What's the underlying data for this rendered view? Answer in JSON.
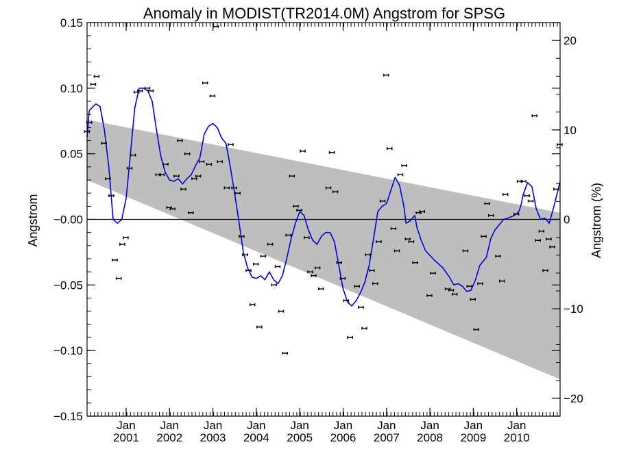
{
  "chart_data": {
    "type": "scatter",
    "title": "Anomaly in MODIST(TR2014.0M) Angstrom for SPSG",
    "ylabel": "Angstrom",
    "ylabel_right": "Angstrom (%)",
    "xlim": [
      2000.0,
      2010.9
    ],
    "ylim": [
      -0.15,
      0.15
    ],
    "y2lim": [
      -22,
      22
    ],
    "yticks": [
      -0.15,
      -0.1,
      -0.05,
      0.0,
      0.05,
      0.1,
      0.15
    ],
    "ytick_labels": [
      "−0.15",
      "−0.10",
      "−0.05",
      "−0.00",
      "0.05",
      "0.10",
      "0.15"
    ],
    "y2ticks": [
      -20,
      -10,
      0,
      10,
      20
    ],
    "y2tick_labels": [
      "−20",
      "−10",
      "0",
      "10",
      "20"
    ],
    "xticks": [
      {
        "month": "Jan",
        "year": "2001",
        "x": 2000.9
      },
      {
        "month": "Jan",
        "year": "2002",
        "x": 2001.9
      },
      {
        "month": "Jan",
        "year": "2003",
        "x": 2002.9
      },
      {
        "month": "Jan",
        "year": "2004",
        "x": 2003.9
      },
      {
        "month": "Jan",
        "year": "2005",
        "x": 2004.9
      },
      {
        "month": "Jan",
        "year": "2006",
        "x": 2005.9
      },
      {
        "month": "Jan",
        "year": "2007",
        "x": 2006.9
      },
      {
        "month": "Jan",
        "year": "2008",
        "x": 2007.9
      },
      {
        "month": "Jan",
        "year": "2009",
        "x": 2008.9
      },
      {
        "month": "Jan",
        "year": "2010",
        "x": 2009.9
      }
    ],
    "trend_band": {
      "upper": [
        [
          2000.0,
          0.076
        ],
        [
          2010.9,
          0.005
        ]
      ],
      "lower": [
        [
          2000.0,
          0.03
        ],
        [
          2010.9,
          -0.122
        ]
      ]
    },
    "zero_line": 0.0,
    "points": [
      [
        2000.0,
        0.067
      ],
      [
        2000.05,
        0.074
      ],
      [
        2000.14,
        0.103
      ],
      [
        2000.22,
        0.109
      ],
      [
        2000.39,
        0.058
      ],
      [
        2000.48,
        0.031
      ],
      [
        2000.56,
        0.018
      ],
      [
        2000.64,
        -0.031
      ],
      [
        2000.73,
        -0.045
      ],
      [
        2000.81,
        -0.019
      ],
      [
        2000.89,
        -0.014
      ],
      [
        2000.98,
        0.039
      ],
      [
        2001.06,
        0.049
      ],
      [
        2001.14,
        0.097
      ],
      [
        2001.22,
        0.098
      ],
      [
        2001.39,
        0.1
      ],
      [
        2001.47,
        0.098
      ],
      [
        2001.64,
        0.034
      ],
      [
        2001.72,
        0.034
      ],
      [
        2001.81,
        0.042
      ],
      [
        2001.89,
        0.009
      ],
      [
        2001.97,
        0.008
      ],
      [
        2002.06,
        0.033
      ],
      [
        2002.14,
        0.06
      ],
      [
        2002.22,
        0.023
      ],
      [
        2002.31,
        0.05
      ],
      [
        2002.39,
        0.005
      ],
      [
        2002.47,
        0.031
      ],
      [
        2002.56,
        0.033
      ],
      [
        2002.64,
        0.044
      ],
      [
        2002.72,
        0.104
      ],
      [
        2002.81,
        0.042
      ],
      [
        2002.89,
        0.094
      ],
      [
        2002.97,
        0.147
      ],
      [
        2003.06,
        0.044
      ],
      [
        2003.22,
        0.024
      ],
      [
        2003.31,
        0.057
      ],
      [
        2003.39,
        0.024
      ],
      [
        2003.47,
        0.02
      ],
      [
        2003.56,
        -0.013
      ],
      [
        2003.64,
        -0.027
      ],
      [
        2003.72,
        -0.039
      ],
      [
        2003.81,
        -0.065
      ],
      [
        2003.89,
        -0.034
      ],
      [
        2003.97,
        -0.082
      ],
      [
        2004.06,
        -0.028
      ],
      [
        2004.22,
        -0.019
      ],
      [
        2004.31,
        -0.05
      ],
      [
        2004.39,
        -0.036
      ],
      [
        2004.47,
        -0.07
      ],
      [
        2004.56,
        -0.102
      ],
      [
        2004.64,
        -0.012
      ],
      [
        2004.72,
        0.033
      ],
      [
        2004.81,
        0.01
      ],
      [
        2004.89,
        0.007
      ],
      [
        2004.97,
        0.052
      ],
      [
        2005.06,
        -0.014
      ],
      [
        2005.14,
        -0.04
      ],
      [
        2005.22,
        -0.043
      ],
      [
        2005.31,
        -0.037
      ],
      [
        2005.39,
        -0.053
      ],
      [
        2005.56,
        0.024
      ],
      [
        2005.64,
        0.051
      ],
      [
        2005.72,
        0.021
      ],
      [
        2005.81,
        -0.033
      ],
      [
        2005.89,
        -0.045
      ],
      [
        2005.97,
        -0.062
      ],
      [
        2006.06,
        -0.09
      ],
      [
        2006.22,
        -0.051
      ],
      [
        2006.31,
        -0.067
      ],
      [
        2006.39,
        -0.083
      ],
      [
        2006.47,
        -0.027
      ],
      [
        2006.56,
        -0.039
      ],
      [
        2006.64,
        -0.049
      ],
      [
        2006.72,
        -0.017
      ],
      [
        2006.81,
        0.014
      ],
      [
        2006.89,
        0.11
      ],
      [
        2006.97,
        0.054
      ],
      [
        2007.06,
        -0.007
      ],
      [
        2007.14,
        -0.024
      ],
      [
        2007.22,
        0.034
      ],
      [
        2007.31,
        0.041
      ],
      [
        2007.39,
        -0.015
      ],
      [
        2007.47,
        -0.017
      ],
      [
        2007.56,
        -0.033
      ],
      [
        2007.64,
        0.005
      ],
      [
        2007.72,
        0.006
      ],
      [
        2007.89,
        -0.058
      ],
      [
        2007.97,
        -0.041
      ],
      [
        2008.31,
        -0.053
      ],
      [
        2008.39,
        -0.054
      ],
      [
        2008.47,
        -0.057
      ],
      [
        2008.72,
        -0.024
      ],
      [
        2008.81,
        -0.051
      ],
      [
        2008.89,
        -0.061
      ],
      [
        2008.97,
        -0.084
      ],
      [
        2009.06,
        -0.049
      ],
      [
        2009.14,
        -0.013
      ],
      [
        2009.22,
        0.012
      ],
      [
        2009.31,
        0.003
      ],
      [
        2009.47,
        -0.028
      ],
      [
        2009.56,
        -0.047
      ],
      [
        2009.64,
        0.019
      ],
      [
        2009.89,
        0.004
      ],
      [
        2009.97,
        0.029
      ],
      [
        2010.06,
        0.029
      ],
      [
        2010.14,
        0.018
      ],
      [
        2010.22,
        0.014
      ],
      [
        2010.31,
        0.079
      ],
      [
        2010.39,
        -0.016
      ],
      [
        2010.47,
        -0.009
      ],
      [
        2010.56,
        -0.039
      ],
      [
        2010.64,
        -0.015
      ],
      [
        2010.72,
        -0.021
      ],
      [
        2010.81,
        0.023
      ],
      [
        2010.89,
        0.057
      ]
    ],
    "smooth_line": [
      [
        2000.0,
        0.063
      ],
      [
        2000.05,
        0.083
      ],
      [
        2000.2,
        0.088
      ],
      [
        2000.3,
        0.086
      ],
      [
        2000.4,
        0.068
      ],
      [
        2000.5,
        0.04
      ],
      [
        2000.6,
        0.0
      ],
      [
        2000.7,
        -0.003
      ],
      [
        2000.8,
        0.0
      ],
      [
        2000.9,
        0.016
      ],
      [
        2001.0,
        0.05
      ],
      [
        2001.1,
        0.085
      ],
      [
        2001.2,
        0.1
      ],
      [
        2001.3,
        0.1
      ],
      [
        2001.4,
        0.098
      ],
      [
        2001.5,
        0.09
      ],
      [
        2001.6,
        0.068
      ],
      [
        2001.7,
        0.048
      ],
      [
        2001.8,
        0.036
      ],
      [
        2001.9,
        0.03
      ],
      [
        2002.0,
        0.029
      ],
      [
        2002.1,
        0.031
      ],
      [
        2002.2,
        0.027
      ],
      [
        2002.3,
        0.031
      ],
      [
        2002.4,
        0.034
      ],
      [
        2002.5,
        0.041
      ],
      [
        2002.6,
        0.047
      ],
      [
        2002.7,
        0.065
      ],
      [
        2002.8,
        0.071
      ],
      [
        2002.9,
        0.073
      ],
      [
        2003.0,
        0.07
      ],
      [
        2003.1,
        0.062
      ],
      [
        2003.2,
        0.058
      ],
      [
        2003.3,
        0.04
      ],
      [
        2003.4,
        0.02
      ],
      [
        2003.5,
        -0.002
      ],
      [
        2003.6,
        -0.025
      ],
      [
        2003.7,
        -0.037
      ],
      [
        2003.8,
        -0.044
      ],
      [
        2003.9,
        -0.045
      ],
      [
        2004.0,
        -0.043
      ],
      [
        2004.1,
        -0.046
      ],
      [
        2004.2,
        -0.04
      ],
      [
        2004.3,
        -0.046
      ],
      [
        2004.4,
        -0.049
      ],
      [
        2004.5,
        -0.043
      ],
      [
        2004.6,
        -0.03
      ],
      [
        2004.7,
        -0.015
      ],
      [
        2004.8,
        -0.003
      ],
      [
        2004.9,
        0.006
      ],
      [
        2005.0,
        0.003
      ],
      [
        2005.1,
        -0.008
      ],
      [
        2005.2,
        -0.016
      ],
      [
        2005.3,
        -0.019
      ],
      [
        2005.4,
        -0.013
      ],
      [
        2005.5,
        -0.01
      ],
      [
        2005.6,
        -0.01
      ],
      [
        2005.7,
        -0.017
      ],
      [
        2005.8,
        -0.035
      ],
      [
        2005.9,
        -0.053
      ],
      [
        2006.0,
        -0.063
      ],
      [
        2006.1,
        -0.066
      ],
      [
        2006.2,
        -0.062
      ],
      [
        2006.3,
        -0.056
      ],
      [
        2006.4,
        -0.048
      ],
      [
        2006.5,
        -0.035
      ],
      [
        2006.6,
        -0.015
      ],
      [
        2006.7,
        0.006
      ],
      [
        2006.8,
        0.01
      ],
      [
        2006.9,
        0.012
      ],
      [
        2007.0,
        0.022
      ],
      [
        2007.1,
        0.032
      ],
      [
        2007.2,
        0.026
      ],
      [
        2007.3,
        0.01
      ],
      [
        2007.35,
        -0.003
      ],
      [
        2007.45,
        -0.001
      ],
      [
        2007.55,
        0.003
      ],
      [
        2007.6,
        -0.006
      ],
      [
        2007.7,
        -0.016
      ],
      [
        2007.8,
        -0.024
      ],
      [
        2008.0,
        -0.031
      ],
      [
        2008.2,
        -0.037
      ],
      [
        2008.35,
        -0.044
      ],
      [
        2008.45,
        -0.05
      ],
      [
        2008.55,
        -0.049
      ],
      [
        2008.65,
        -0.051
      ],
      [
        2008.75,
        -0.055
      ],
      [
        2008.85,
        -0.054
      ],
      [
        2008.95,
        -0.046
      ],
      [
        2009.05,
        -0.035
      ],
      [
        2009.2,
        -0.029
      ],
      [
        2009.3,
        -0.015
      ],
      [
        2009.4,
        -0.008
      ],
      [
        2009.5,
        -0.004
      ],
      [
        2009.6,
        0.0
      ],
      [
        2009.7,
        0.001
      ],
      [
        2009.85,
        0.003
      ],
      [
        2009.95,
        0.006
      ],
      [
        2010.0,
        0.011
      ],
      [
        2010.05,
        0.019
      ],
      [
        2010.15,
        0.028
      ],
      [
        2010.25,
        0.025
      ],
      [
        2010.35,
        0.008
      ],
      [
        2010.45,
        0.0
      ],
      [
        2010.55,
        0.001
      ],
      [
        2010.65,
        -0.003
      ],
      [
        2010.75,
        0.009
      ],
      [
        2010.85,
        0.022
      ],
      [
        2010.9,
        0.029
      ]
    ],
    "colors": {
      "band": "#bebebe",
      "smooth_line": "#0000e6",
      "points": "#000000",
      "zero_line": "#000000",
      "axes": "#000000"
    }
  }
}
